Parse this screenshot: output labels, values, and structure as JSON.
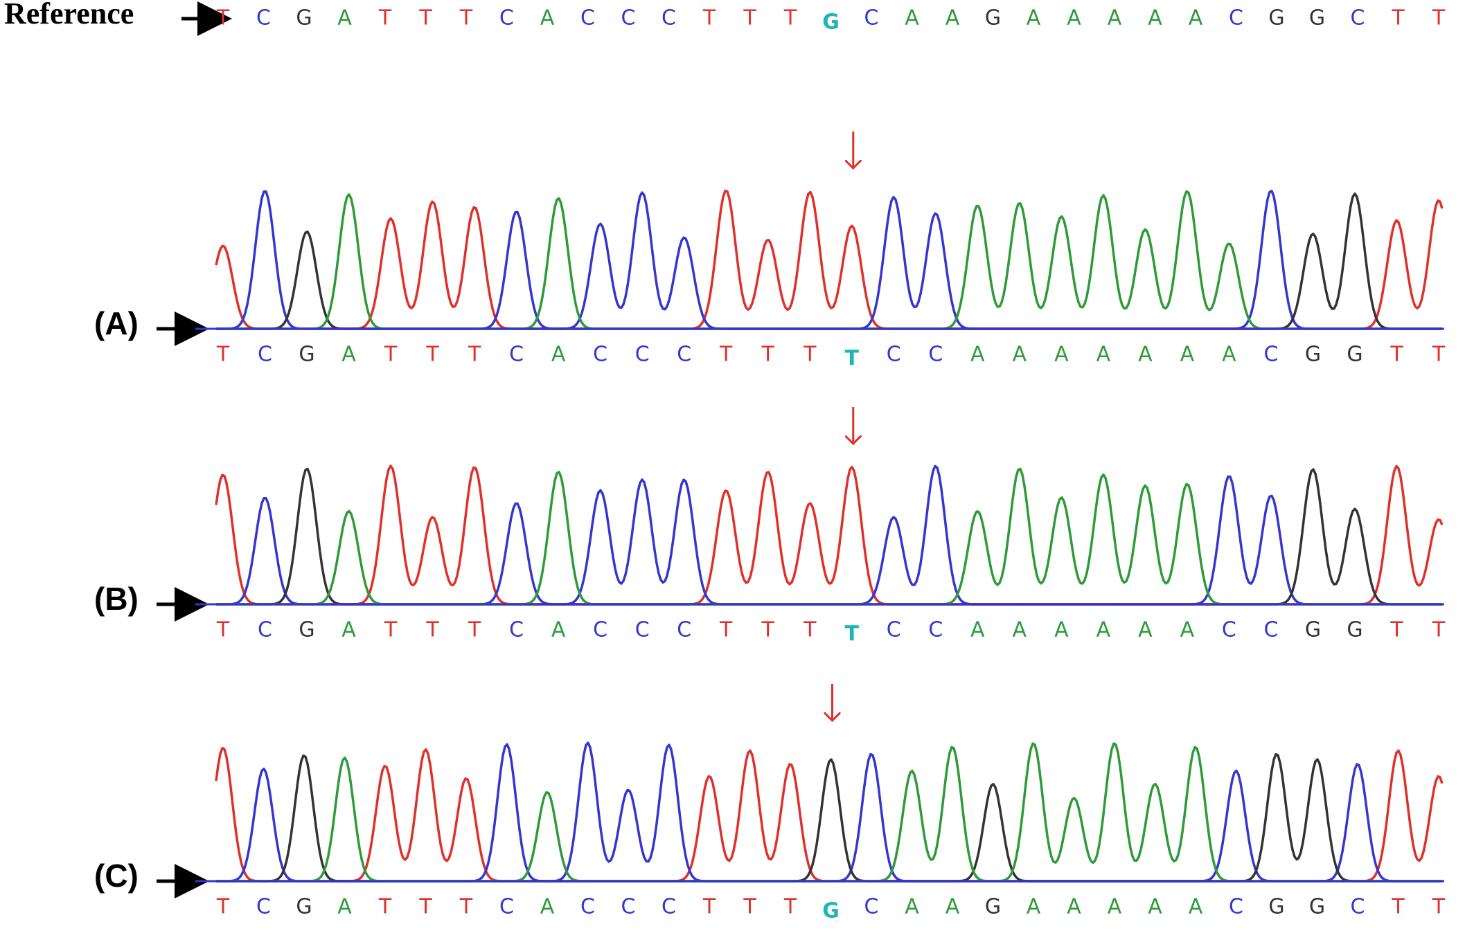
{
  "reference": {
    "label": "Reference",
    "sequence": [
      "T",
      "C",
      "G",
      "A",
      "T",
      "T",
      "T",
      "C",
      "A",
      "C",
      "C",
      "C",
      "T",
      "T",
      "T",
      "G",
      "C",
      "A",
      "A",
      "G",
      "A",
      "A",
      "A",
      "A",
      "A",
      "C",
      "G",
      "G",
      "C",
      "T",
      "T"
    ],
    "highlight_index": 15
  },
  "panels": [
    {
      "label": "(A)",
      "sequence": [
        "T",
        "C",
        "G",
        "A",
        "T",
        "T",
        "T",
        "C",
        "A",
        "C",
        "C",
        "C",
        "T",
        "T",
        "T",
        "T",
        "C",
        "C",
        "A",
        "A",
        "A",
        "A",
        "A",
        "A",
        "A",
        "C",
        "G",
        "G",
        "T",
        "T"
      ],
      "highlight_index": 15
    },
    {
      "label": "(B)",
      "sequence": [
        "T",
        "C",
        "G",
        "A",
        "T",
        "T",
        "T",
        "C",
        "A",
        "C",
        "C",
        "C",
        "T",
        "T",
        "T",
        "T",
        "C",
        "C",
        "A",
        "A",
        "A",
        "A",
        "A",
        "A",
        "C",
        "C",
        "G",
        "G",
        "T",
        "T"
      ],
      "highlight_index": 15
    },
    {
      "label": "(C)",
      "sequence": [
        "T",
        "C",
        "G",
        "A",
        "T",
        "T",
        "T",
        "C",
        "A",
        "C",
        "C",
        "C",
        "T",
        "T",
        "T",
        "G",
        "C",
        "A",
        "A",
        "G",
        "A",
        "A",
        "A",
        "A",
        "A",
        "C",
        "G",
        "G",
        "C",
        "T",
        "T"
      ],
      "highlight_index": 15
    }
  ],
  "base_colors": {
    "T": "#e0302a",
    "C": "#3535d0",
    "G": "#333333",
    "A": "#2e9a38"
  },
  "highlight_color": "#1fb5b5"
}
